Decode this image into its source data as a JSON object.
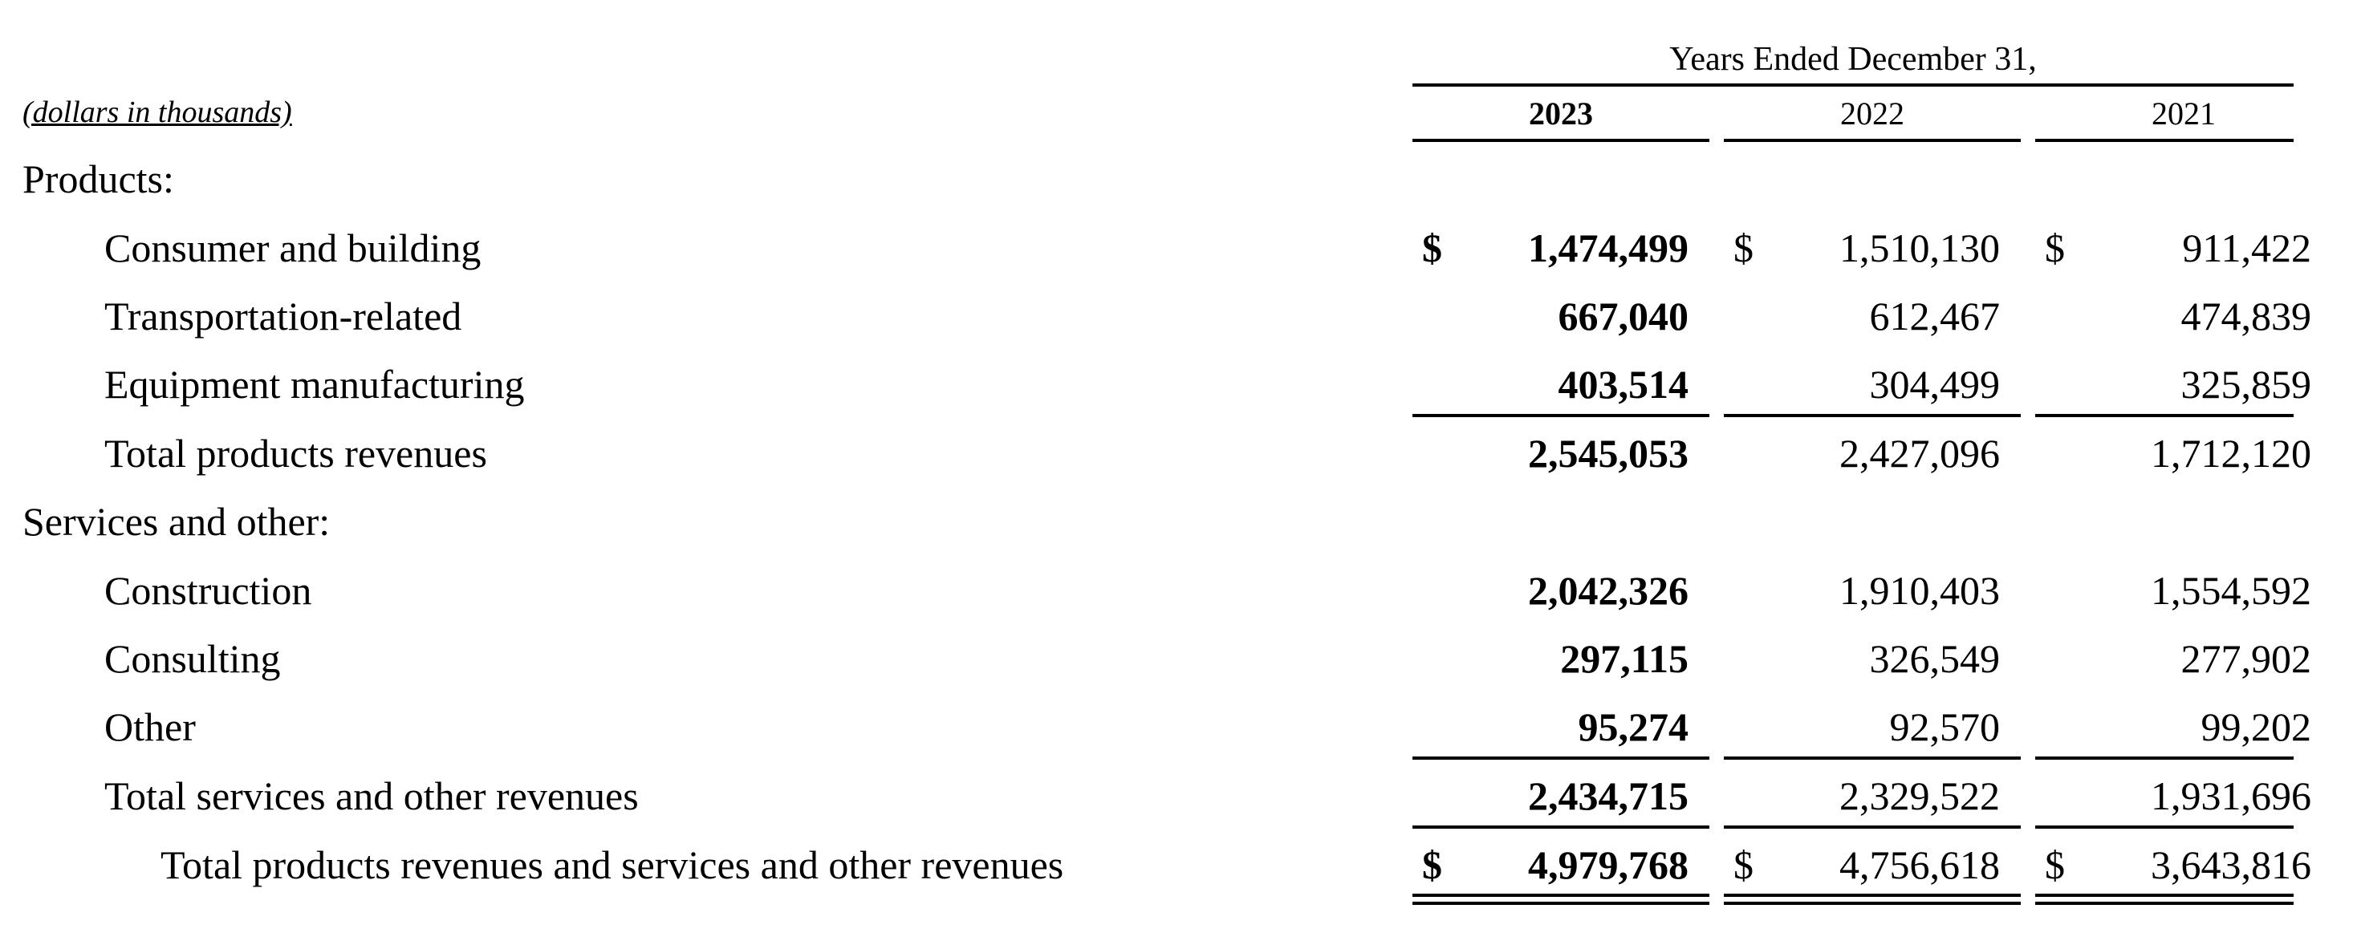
{
  "header": {
    "units": "(dollars in thousands)",
    "period": "Years Ended December 31,",
    "years": [
      "2023",
      "2022",
      "2021"
    ]
  },
  "rows": [
    {
      "label": "Products:",
      "values": null
    },
    {
      "label": "Consumer and building",
      "currency": "$",
      "values": [
        "1,474,499",
        "1,510,130",
        "911,422"
      ]
    },
    {
      "label": "Transportation-related",
      "values": [
        "667,040",
        "612,467",
        "474,839"
      ]
    },
    {
      "label": "Equipment manufacturing",
      "values": [
        "403,514",
        "304,499",
        "325,859"
      ]
    },
    {
      "label": "Total products revenues",
      "values": [
        "2,545,053",
        "2,427,096",
        "1,712,120"
      ]
    },
    {
      "label": "Services and other:",
      "values": null
    },
    {
      "label": "Construction",
      "values": [
        "2,042,326",
        "1,910,403",
        "1,554,592"
      ]
    },
    {
      "label": "Consulting",
      "values": [
        "297,115",
        "326,549",
        "277,902"
      ]
    },
    {
      "label": "Other",
      "values": [
        "95,274",
        "92,570",
        "99,202"
      ]
    },
    {
      "label": "Total services and other revenues",
      "values": [
        "2,434,715",
        "2,329,522",
        "1,931,696"
      ]
    },
    {
      "label": "Total products revenues and services and other revenues",
      "currency": "$",
      "values": [
        "4,979,768",
        "4,756,618",
        "3,643,816"
      ]
    }
  ]
}
